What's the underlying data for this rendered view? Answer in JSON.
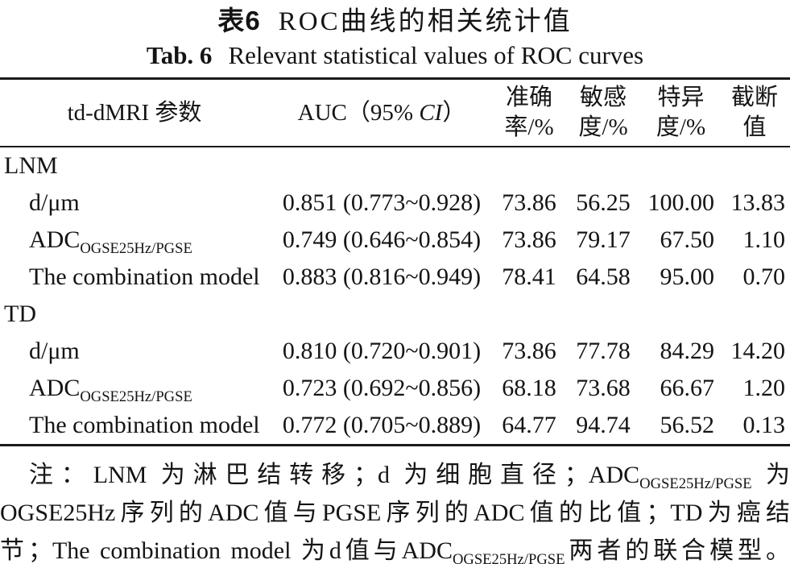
{
  "title": {
    "zh_label": "表6",
    "zh_text": "ROC曲线的相关统计值",
    "en_label": "Tab. 6",
    "en_text": "Relevant statistical values of ROC curves"
  },
  "table": {
    "header": {
      "param": "td-dMRI 参数",
      "auc_pre": "AUC（95% ",
      "auc_italic": "CI",
      "auc_post": "）",
      "accuracy_line1": "准确",
      "accuracy_line2": "率/%",
      "sensitivity_line1": "敏感",
      "sensitivity_line2": "度/%",
      "specificity_line1": "特异",
      "specificity_line2": "度/%",
      "cutoff_line1": "截断",
      "cutoff_line2": "值"
    },
    "rows": [
      {
        "type": "group",
        "param": "LNM"
      },
      {
        "type": "item",
        "param": "d/μm",
        "auc": "0.851 (0.773~0.928)",
        "acc": "73.86",
        "sens": "56.25",
        "spec": "100.00",
        "cutoff": "13.83"
      },
      {
        "type": "item",
        "param": "ADC",
        "param_sub": "OGSE25Hz/PGSE",
        "auc": "0.749 (0.646~0.854)",
        "acc": "73.86",
        "sens": "79.17",
        "spec": "67.50",
        "cutoff": "1.10"
      },
      {
        "type": "item",
        "param": "The combination model",
        "auc": "0.883 (0.816~0.949)",
        "acc": "78.41",
        "sens": "64.58",
        "spec": "95.00",
        "cutoff": "0.70"
      },
      {
        "type": "group",
        "param": "TD"
      },
      {
        "type": "item",
        "param": "d/μm",
        "auc": "0.810 (0.720~0.901)",
        "acc": "73.86",
        "sens": "77.78",
        "spec": "84.29",
        "cutoff": "14.20"
      },
      {
        "type": "item",
        "param": "ADC",
        "param_sub": "OGSE25Hz/PGSE",
        "auc": "0.723 (0.692~0.856)",
        "acc": "68.18",
        "sens": "73.68",
        "spec": "66.67",
        "cutoff": "1.20"
      },
      {
        "type": "item",
        "param": "The combination model",
        "auc": "0.772 (0.705~0.889)",
        "acc": "64.77",
        "sens": "94.74",
        "spec": "56.52",
        "cutoff": "0.13"
      }
    ]
  },
  "note": {
    "line1_pre": "注：LNM 为淋巴结转移；d 为细胞直径；ADC",
    "line1_sub": "OGSE25Hz/PGSE",
    "line1_post": " 为",
    "line2": "OGSE25Hz序列的ADC值与PGSE序列的ADC值的比值；TD为癌结",
    "line3_pre": "节；The combination model 为d值与ADC",
    "line3_sub": "OGSE25Hz/PGSE",
    "line3_post": "两者的联合模型。"
  },
  "colors": {
    "text": "#141414",
    "rule": "#1a1a1a",
    "background": "#ffffff"
  }
}
